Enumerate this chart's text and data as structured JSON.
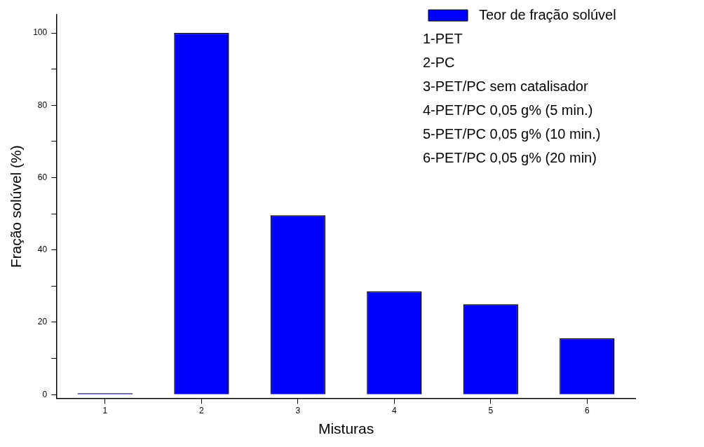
{
  "chart_data": {
    "type": "bar",
    "xlabel": "Misturas",
    "ylabel": "Fração solúvel (%)",
    "categories": [
      "1",
      "2",
      "3",
      "4",
      "5",
      "6"
    ],
    "series": [
      {
        "name": "Teor de fração solúvel",
        "color": "#0000ff",
        "values": [
          0.4,
          100,
          49.6,
          28.5,
          25,
          15.6
        ]
      }
    ],
    "ylim": [
      -1,
      105
    ],
    "yticks": [
      0,
      {
        "value": 10,
        "label": null
      },
      20,
      {
        "value": 30,
        "label": null
      },
      40,
      {
        "value": 50,
        "label": null
      },
      60,
      {
        "value": 70,
        "label": null
      },
      80,
      {
        "value": 90,
        "label": null
      },
      100
    ],
    "grid": false,
    "legend": "top right",
    "annotations": [
      "1-PET",
      "2-PC",
      "3-PET/PC sem catalisador",
      "4-PET/PC 0,05 g% (5 min.)",
      "5-PET/PC 0,05 g% (10 min.)",
      "6-PET/PC 0,05 g% (20 min)"
    ]
  }
}
